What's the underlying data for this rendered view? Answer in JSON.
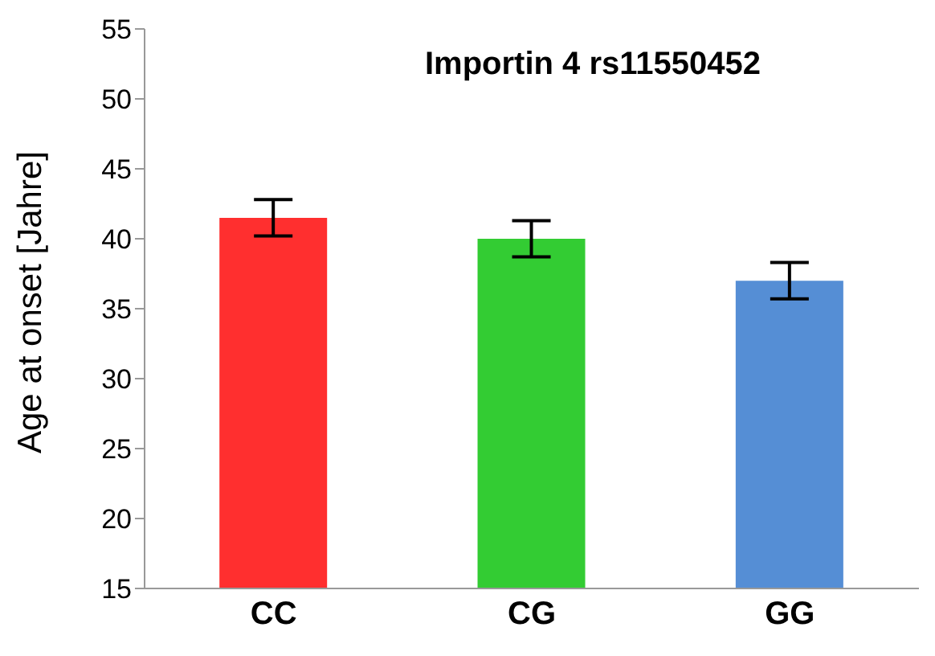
{
  "chart_data": {
    "type": "bar",
    "title": "Importin 4 rs11550452",
    "ylabel": "Age at onset [Jahre]",
    "categories": [
      "CC",
      "CG",
      "GG"
    ],
    "values": [
      41.5,
      40.0,
      37.0
    ],
    "colors": [
      "#ff2f2f",
      "#33cc33",
      "#558ed5"
    ],
    "errors": [
      1.3,
      1.3,
      1.3
    ],
    "ylim": [
      15,
      55
    ],
    "yticks": [
      15,
      20,
      25,
      30,
      35,
      40,
      45,
      50,
      55
    ],
    "grid": false,
    "legend": false
  }
}
